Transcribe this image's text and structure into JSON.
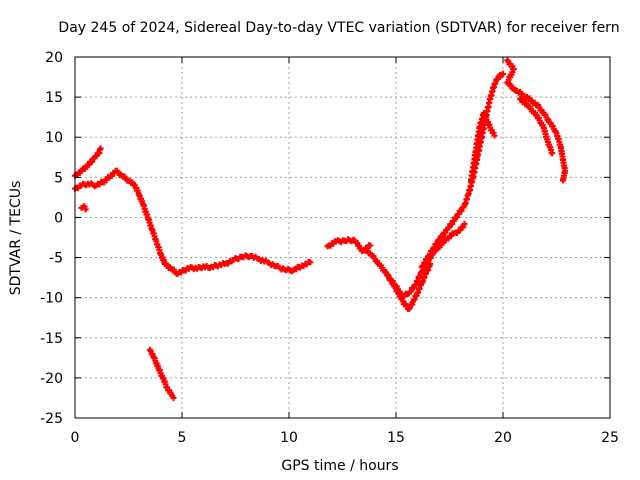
{
  "chart_data": {
    "type": "scatter",
    "title": "Day 245 of 2024, Sidereal Day-to-day VTEC variation (SDTVAR) for receiver fern",
    "xlabel": "GPS time / hours",
    "ylabel": "SDTVAR / TECUs",
    "xlim": [
      0,
      25
    ],
    "ylim": [
      -25,
      20
    ],
    "xticks": [
      0,
      5,
      10,
      15,
      20,
      25
    ],
    "yticks": [
      -25,
      -20,
      -15,
      -10,
      -5,
      0,
      5,
      10,
      15,
      20
    ],
    "grid": true,
    "marker": "plus",
    "color": "#ff0000",
    "series": [
      {
        "name": "main-track",
        "points": [
          [
            0.0,
            3.6
          ],
          [
            0.3,
            4.0
          ],
          [
            0.6,
            4.2
          ],
          [
            1.0,
            4.0
          ],
          [
            1.3,
            4.4
          ],
          [
            1.6,
            5.0
          ],
          [
            1.9,
            5.8
          ],
          [
            2.2,
            5.2
          ],
          [
            2.5,
            4.6
          ],
          [
            2.8,
            4.0
          ],
          [
            3.0,
            2.8
          ],
          [
            3.2,
            1.5
          ],
          [
            3.4,
            0.0
          ],
          [
            3.6,
            -1.5
          ],
          [
            3.8,
            -3.0
          ],
          [
            4.0,
            -4.5
          ],
          [
            4.2,
            -5.8
          ],
          [
            4.5,
            -6.4
          ],
          [
            4.8,
            -7.0
          ],
          [
            5.1,
            -6.6
          ],
          [
            5.4,
            -6.2
          ],
          [
            5.7,
            -6.4
          ],
          [
            6.0,
            -6.1
          ],
          [
            6.3,
            -6.3
          ],
          [
            6.6,
            -6.0
          ],
          [
            7.0,
            -5.8
          ],
          [
            7.4,
            -5.3
          ],
          [
            7.8,
            -4.9
          ],
          [
            8.2,
            -4.8
          ],
          [
            8.6,
            -5.2
          ],
          [
            9.0,
            -5.6
          ],
          [
            9.4,
            -6.1
          ],
          [
            9.8,
            -6.5
          ],
          [
            10.2,
            -6.6
          ],
          [
            10.6,
            -6.0
          ],
          [
            11.0,
            -5.6
          ]
        ]
      },
      {
        "name": "morning-spike",
        "points": [
          [
            0.0,
            5.2
          ],
          [
            0.3,
            5.8
          ],
          [
            0.6,
            6.5
          ],
          [
            0.9,
            7.4
          ],
          [
            1.1,
            8.0
          ],
          [
            1.2,
            8.6
          ]
        ]
      },
      {
        "name": "small-cluster",
        "points": [
          [
            0.3,
            1.2
          ],
          [
            0.4,
            1.4
          ],
          [
            0.5,
            1.0
          ]
        ]
      },
      {
        "name": "outlier-segment",
        "points": [
          [
            3.5,
            -16.5
          ],
          [
            3.7,
            -17.5
          ],
          [
            3.9,
            -18.8
          ],
          [
            4.1,
            -20.0
          ],
          [
            4.3,
            -21.2
          ],
          [
            4.5,
            -22.0
          ],
          [
            4.6,
            -22.5
          ]
        ]
      },
      {
        "name": "midday-cluster",
        "points": [
          [
            11.8,
            -3.6
          ],
          [
            12.2,
            -3.0
          ],
          [
            12.6,
            -2.9
          ],
          [
            13.0,
            -2.8
          ],
          [
            13.2,
            -3.2
          ],
          [
            13.4,
            -4.2
          ],
          [
            13.8,
            -3.5
          ]
        ]
      },
      {
        "name": "descending-dip",
        "points": [
          [
            13.6,
            -4.0
          ],
          [
            13.9,
            -4.8
          ],
          [
            14.2,
            -5.8
          ],
          [
            14.5,
            -6.8
          ],
          [
            14.8,
            -8.0
          ],
          [
            15.1,
            -9.4
          ],
          [
            15.4,
            -10.8
          ],
          [
            15.6,
            -11.4
          ],
          [
            15.8,
            -10.5
          ],
          [
            16.0,
            -9.4
          ],
          [
            16.2,
            -8.2
          ],
          [
            16.4,
            -7.0
          ],
          [
            16.6,
            -5.8
          ]
        ]
      },
      {
        "name": "late-band-a",
        "points": [
          [
            14.6,
            -7.2
          ],
          [
            15.0,
            -8.6
          ],
          [
            15.3,
            -9.8
          ],
          [
            15.6,
            -9.5
          ],
          [
            15.9,
            -8.4
          ],
          [
            16.2,
            -6.8
          ],
          [
            16.5,
            -5.4
          ],
          [
            16.8,
            -4.2
          ],
          [
            17.1,
            -3.4
          ],
          [
            17.4,
            -2.6
          ],
          [
            17.7,
            -2.0
          ],
          [
            18.0,
            -1.6
          ],
          [
            18.2,
            -0.8
          ]
        ]
      },
      {
        "name": "late-band-b",
        "points": [
          [
            16.2,
            -6.2
          ],
          [
            16.6,
            -4.5
          ],
          [
            17.0,
            -2.8
          ],
          [
            17.4,
            -1.5
          ],
          [
            17.8,
            0.0
          ],
          [
            18.2,
            1.5
          ],
          [
            18.4,
            3.0
          ],
          [
            18.6,
            5.0
          ],
          [
            18.8,
            7.5
          ],
          [
            19.0,
            10.0
          ],
          [
            19.2,
            12.5
          ],
          [
            19.4,
            14.8
          ],
          [
            19.6,
            16.6
          ],
          [
            19.8,
            17.6
          ],
          [
            20.0,
            17.9
          ]
        ]
      },
      {
        "name": "afternoon-spikes",
        "points": [
          [
            18.5,
            4.5
          ],
          [
            18.7,
            7.8
          ],
          [
            18.9,
            11.2
          ],
          [
            19.1,
            13.0
          ],
          [
            19.4,
            11.2
          ],
          [
            19.6,
            10.2
          ]
        ]
      },
      {
        "name": "evening-decline",
        "points": [
          [
            20.2,
            19.6
          ],
          [
            20.5,
            18.5
          ],
          [
            20.2,
            16.8
          ],
          [
            20.6,
            15.8
          ],
          [
            21.0,
            15.2
          ],
          [
            21.3,
            14.6
          ],
          [
            21.6,
            14.0
          ],
          [
            21.9,
            13.0
          ],
          [
            22.2,
            11.8
          ],
          [
            22.5,
            10.5
          ],
          [
            22.7,
            8.8
          ],
          [
            22.8,
            7.2
          ],
          [
            22.9,
            5.8
          ],
          [
            22.8,
            4.6
          ]
        ]
      },
      {
        "name": "evening-band-lower",
        "points": [
          [
            20.8,
            14.8
          ],
          [
            21.2,
            13.8
          ],
          [
            21.6,
            12.6
          ],
          [
            21.9,
            11.2
          ],
          [
            22.1,
            9.4
          ],
          [
            22.3,
            8.0
          ]
        ]
      }
    ]
  }
}
